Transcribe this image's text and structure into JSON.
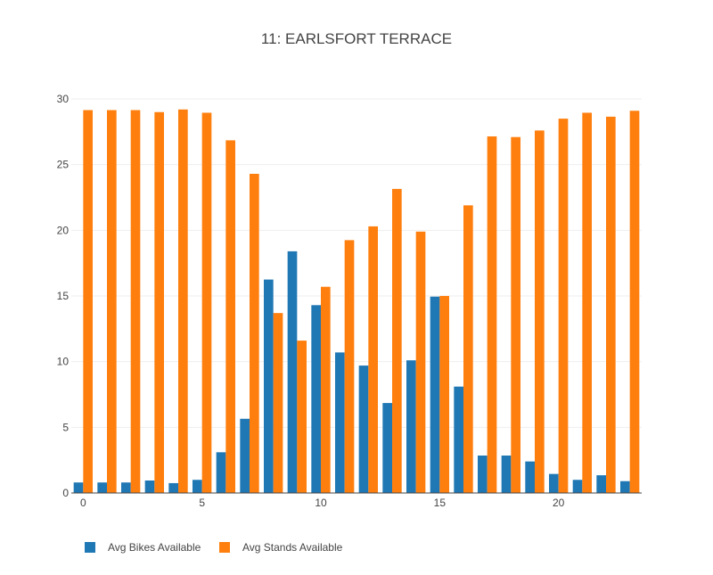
{
  "chart_data": {
    "type": "bar",
    "title": "11: EARLSFORT TERRACE",
    "xlabel": "",
    "ylabel": "",
    "x": [
      0,
      1,
      2,
      3,
      4,
      5,
      6,
      7,
      8,
      9,
      10,
      11,
      12,
      13,
      14,
      15,
      16,
      17,
      18,
      19,
      20,
      21,
      22,
      23
    ],
    "xlim": [
      -0.5,
      23.5
    ],
    "ylim": [
      0,
      30
    ],
    "xticks": [
      0,
      5,
      10,
      15,
      20
    ],
    "yticks": [
      0,
      5,
      10,
      15,
      20,
      25,
      30
    ],
    "grid": true,
    "legend_position": "bottom-left",
    "series": [
      {
        "name": "Avg Bikes Available",
        "color": "#1f77b4",
        "values": [
          0.8,
          0.8,
          0.8,
          0.95,
          0.75,
          1.0,
          3.1,
          5.65,
          16.25,
          18.4,
          14.3,
          10.7,
          9.7,
          6.85,
          10.1,
          14.95,
          8.1,
          2.85,
          2.85,
          2.4,
          1.45,
          1.0,
          1.35,
          0.9
        ]
      },
      {
        "name": "Avg Stands Available",
        "color": "#ff7f0e",
        "values": [
          29.15,
          29.15,
          29.15,
          29.0,
          29.2,
          28.95,
          26.85,
          24.3,
          13.7,
          11.6,
          15.7,
          19.25,
          20.3,
          23.15,
          19.9,
          15.0,
          21.9,
          27.15,
          27.1,
          27.6,
          28.5,
          28.95,
          28.65,
          29.1
        ]
      }
    ]
  }
}
